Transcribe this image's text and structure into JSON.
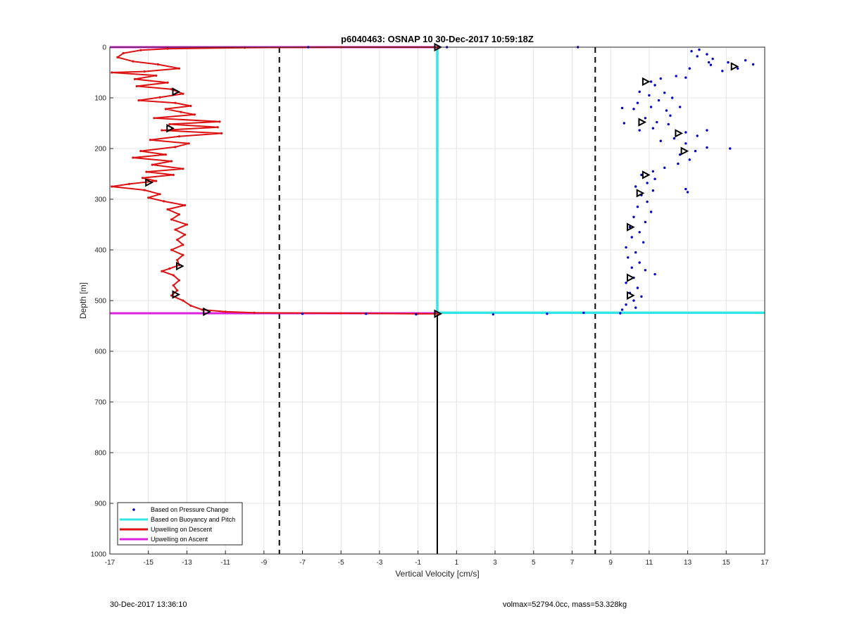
{
  "chart_data": {
    "type": "line",
    "title": "p6040463: OSNAP 10 30-Dec-2017 10:59:18Z",
    "xlabel": "Vertical Velocity [cm/s]",
    "ylabel": "Depth [m]",
    "xlim": [
      -17,
      17
    ],
    "ylim": [
      0,
      1000
    ],
    "y_reversed": true,
    "grid": true,
    "xticks": [
      -17,
      -15,
      -13,
      -11,
      -9,
      -7,
      -5,
      -3,
      -1,
      1,
      3,
      5,
      7,
      9,
      11,
      13,
      15,
      17
    ],
    "yticks": [
      0,
      100,
      200,
      300,
      400,
      500,
      600,
      700,
      800,
      900,
      1000
    ],
    "legend_position": "bottom-left",
    "colors": {
      "pressure": "#0000cc",
      "buoyancy": "#33e6e6",
      "descent": "#dd1111",
      "ascent": "#dd22dd",
      "reference": "#000000"
    },
    "vertical_reference_lines": {
      "dashed_x": [
        -8.2,
        8.2
      ],
      "solid_x": 0,
      "solid_depth_range": [
        525,
        1000
      ]
    },
    "series": [
      {
        "name": "Based on Pressure Change",
        "style": "dots",
        "points": [
          [
            13.2,
            8
          ],
          [
            13.6,
            5
          ],
          [
            14.0,
            14
          ],
          [
            13.5,
            18
          ],
          [
            14.3,
            23
          ],
          [
            14.1,
            30
          ],
          [
            15.1,
            30
          ],
          [
            16.0,
            26
          ],
          [
            16.4,
            34
          ],
          [
            15.6,
            42
          ],
          [
            14.8,
            47
          ],
          [
            14.2,
            35
          ],
          [
            13.1,
            42
          ],
          [
            12.9,
            60
          ],
          [
            11.1,
            68
          ],
          [
            11.6,
            62
          ],
          [
            12.4,
            57
          ],
          [
            11.3,
            75
          ],
          [
            10.5,
            88
          ],
          [
            11.0,
            95
          ],
          [
            11.8,
            90
          ],
          [
            12.2,
            100
          ],
          [
            11.5,
            105
          ],
          [
            10.4,
            110
          ],
          [
            11.1,
            118
          ],
          [
            10.2,
            122
          ],
          [
            9.6,
            120
          ],
          [
            11.9,
            125
          ],
          [
            12.6,
            118
          ],
          [
            12.1,
            135
          ],
          [
            10.8,
            140
          ],
          [
            11.4,
            148
          ],
          [
            9.7,
            150
          ],
          [
            12.0,
            152
          ],
          [
            11.2,
            160
          ],
          [
            10.5,
            164
          ],
          [
            12.9,
            168
          ],
          [
            14.0,
            164
          ],
          [
            13.5,
            175
          ],
          [
            12.3,
            180
          ],
          [
            11.6,
            185
          ],
          [
            12.9,
            190
          ],
          [
            14.0,
            198
          ],
          [
            15.2,
            200
          ],
          [
            13.4,
            205
          ],
          [
            12.6,
            212
          ],
          [
            13.1,
            222
          ],
          [
            12.5,
            230
          ],
          [
            11.8,
            238
          ],
          [
            11.2,
            245
          ],
          [
            10.6,
            252
          ],
          [
            11.3,
            260
          ],
          [
            10.9,
            268
          ],
          [
            10.3,
            275
          ],
          [
            11.2,
            283
          ],
          [
            12.9,
            280
          ],
          [
            13.0,
            286
          ],
          [
            10.6,
            292
          ],
          [
            10.9,
            305
          ],
          [
            10.4,
            315
          ],
          [
            11.1,
            325
          ],
          [
            10.2,
            335
          ],
          [
            10.8,
            345
          ],
          [
            10.0,
            355
          ],
          [
            10.5,
            365
          ],
          [
            10.1,
            375
          ],
          [
            10.7,
            385
          ],
          [
            9.8,
            395
          ],
          [
            10.3,
            405
          ],
          [
            9.9,
            415
          ],
          [
            10.5,
            425
          ],
          [
            10.1,
            435
          ],
          [
            10.8,
            440
          ],
          [
            11.3,
            448
          ],
          [
            10.2,
            455
          ],
          [
            9.8,
            465
          ],
          [
            10.4,
            475
          ],
          [
            10.0,
            485
          ],
          [
            10.6,
            492
          ],
          [
            10.2,
            500
          ],
          [
            9.8,
            508
          ],
          [
            10.3,
            514
          ],
          [
            9.6,
            518
          ],
          [
            9.5,
            525
          ],
          [
            0.5,
            0
          ],
          [
            7.3,
            0
          ],
          [
            -6.7,
            0
          ],
          [
            -7.0,
            526
          ],
          [
            -3.7,
            526
          ],
          [
            -1.1,
            527
          ],
          [
            2.9,
            527
          ],
          [
            5.7,
            526
          ],
          [
            7.6,
            524
          ]
        ]
      },
      {
        "name": "Based on Buoyancy and Pitch",
        "style": "line",
        "points": [
          [
            0,
            0
          ],
          [
            0,
            100
          ],
          [
            0,
            200
          ],
          [
            0,
            300
          ],
          [
            0,
            400
          ],
          [
            0,
            500
          ],
          [
            0,
            524
          ],
          [
            3,
            524
          ],
          [
            8,
            524
          ],
          [
            17,
            524
          ]
        ]
      },
      {
        "name": "Upwelling on Descent",
        "style": "line-dots",
        "points": [
          [
            0,
            0
          ],
          [
            -5,
            0
          ],
          [
            -10,
            1
          ],
          [
            -14,
            3
          ],
          [
            -15.4,
            6
          ],
          [
            -16.3,
            12
          ],
          [
            -16.6,
            20
          ],
          [
            -15.8,
            28
          ],
          [
            -14.5,
            34
          ],
          [
            -13.4,
            42
          ],
          [
            -15.2,
            48
          ],
          [
            -16.9,
            50
          ],
          [
            -14.6,
            56
          ],
          [
            -15.7,
            63
          ],
          [
            -14.0,
            70
          ],
          [
            -15.6,
            77
          ],
          [
            -13.8,
            83
          ],
          [
            -13.2,
            92
          ],
          [
            -14.4,
            99
          ],
          [
            -15.5,
            105
          ],
          [
            -13.6,
            110
          ],
          [
            -12.8,
            116
          ],
          [
            -14.1,
            122
          ],
          [
            -13.3,
            128
          ],
          [
            -12.6,
            133
          ],
          [
            -14.7,
            140
          ],
          [
            -11.3,
            147
          ],
          [
            -13.9,
            152
          ],
          [
            -11.4,
            158
          ],
          [
            -14.3,
            164
          ],
          [
            -11.2,
            170
          ],
          [
            -13.4,
            176
          ],
          [
            -14.9,
            183
          ],
          [
            -12.9,
            190
          ],
          [
            -13.6,
            197
          ],
          [
            -15.4,
            205
          ],
          [
            -14.1,
            212
          ],
          [
            -15.8,
            218
          ],
          [
            -13.8,
            225
          ],
          [
            -14.8,
            232
          ],
          [
            -13.2,
            240
          ],
          [
            -15.1,
            246
          ],
          [
            -13.7,
            252
          ],
          [
            -15.3,
            258
          ],
          [
            -14.6,
            264
          ],
          [
            -16.0,
            270
          ],
          [
            -16.9,
            275
          ],
          [
            -15.2,
            282
          ],
          [
            -14.4,
            290
          ],
          [
            -15.0,
            297
          ],
          [
            -14.2,
            304
          ],
          [
            -13.1,
            312
          ],
          [
            -14.0,
            320
          ],
          [
            -13.4,
            330
          ],
          [
            -13.8,
            340
          ],
          [
            -13.0,
            350
          ],
          [
            -13.6,
            360
          ],
          [
            -13.1,
            370
          ],
          [
            -13.5,
            380
          ],
          [
            -13.2,
            390
          ],
          [
            -13.8,
            400
          ],
          [
            -13.2,
            410
          ],
          [
            -13.5,
            420
          ],
          [
            -13.4,
            430
          ],
          [
            -13.9,
            437
          ],
          [
            -14.3,
            442
          ],
          [
            -13.7,
            450
          ],
          [
            -13.4,
            460
          ],
          [
            -13.7,
            470
          ],
          [
            -13.5,
            480
          ],
          [
            -13.8,
            490
          ],
          [
            -13.2,
            500
          ],
          [
            -12.8,
            510
          ],
          [
            -12.2,
            518
          ],
          [
            -11.0,
            522
          ],
          [
            -9.5,
            524
          ],
          [
            -5,
            525
          ],
          [
            -1,
            526
          ],
          [
            0,
            526
          ]
        ]
      },
      {
        "name": "Upwelling on Ascent",
        "style": "line",
        "points": [
          [
            -17,
            0
          ],
          [
            0,
            0
          ],
          [
            -17,
            525
          ],
          [
            0,
            525
          ]
        ]
      }
    ],
    "markers": {
      "style": "triangle",
      "points": [
        [
          15.4,
          38
        ],
        [
          10.8,
          68
        ],
        [
          10.6,
          148
        ],
        [
          12.5,
          170
        ],
        [
          12.8,
          205
        ],
        [
          10.8,
          252
        ],
        [
          10.5,
          288
        ],
        [
          10.0,
          355
        ],
        [
          10.0,
          455
        ],
        [
          10.0,
          490
        ],
        [
          -13.6,
          88
        ],
        [
          -13.9,
          160
        ],
        [
          -15.0,
          267
        ],
        [
          -13.4,
          432
        ],
        [
          -13.6,
          488
        ],
        [
          -12.0,
          522
        ],
        [
          0,
          0
        ],
        [
          0,
          526
        ]
      ]
    }
  },
  "footer": {
    "left": "30-Dec-2017 13:36:10",
    "right": "volmax=52794.0cc, mass=53.328kg"
  }
}
